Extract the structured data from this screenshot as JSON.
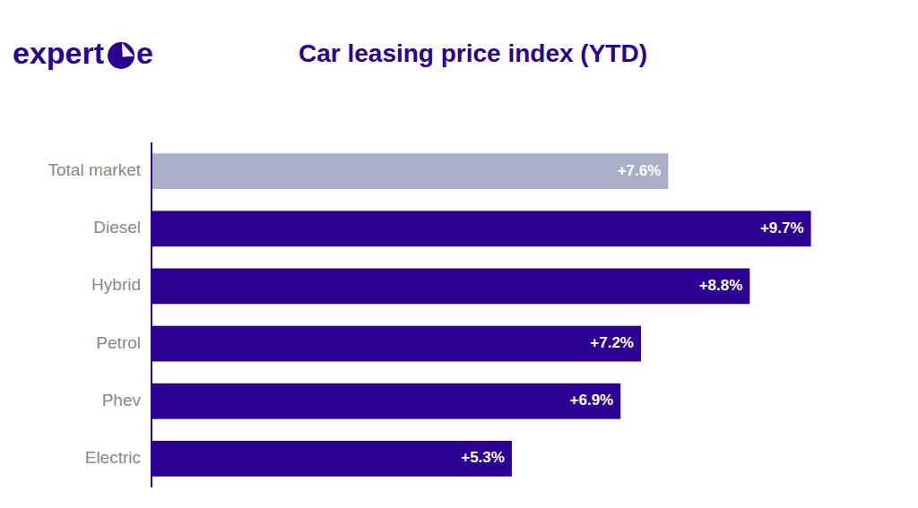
{
  "chart_data": {
    "type": "bar",
    "orientation": "horizontal",
    "title": "Car leasing price index (YTD)",
    "annotations": [
      "expert",
      "e"
    ],
    "categories": [
      "Total market",
      "Diesel",
      "Hybrid",
      "Petrol",
      "Phev",
      "Electric"
    ],
    "values": [
      7.6,
      9.7,
      8.8,
      7.2,
      6.9,
      5.3
    ],
    "value_labels": [
      "+7.6%",
      "+9.7%",
      "+8.8%",
      "+7.2%",
      "+6.9%",
      "+5.3%"
    ],
    "data_labels": true,
    "colors": [
      "#a8afc7",
      "#2b0092",
      "#2b0092",
      "#2b0092",
      "#2b0092",
      "#2b0092"
    ],
    "xlim": [
      0,
      10.8
    ],
    "tick_labels": "y",
    "grid": false
  }
}
